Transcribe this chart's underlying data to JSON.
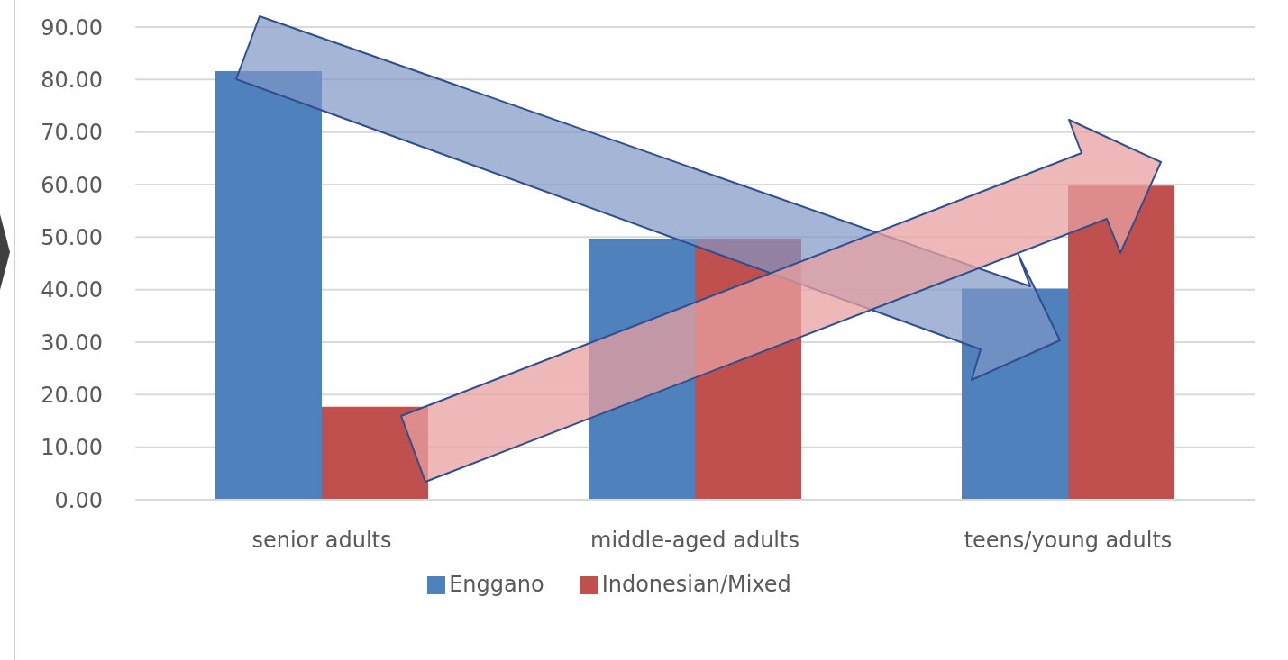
{
  "chart_data": {
    "type": "bar",
    "categories": [
      "senior adults",
      "middle-aged adults",
      "teens/young adults"
    ],
    "series": [
      {
        "name": "Enggano",
        "color": "#4f81bd",
        "values": [
          81.6,
          49.7,
          40.2
        ]
      },
      {
        "name": "Indonesian/Mixed",
        "color": "#c0504d",
        "values": [
          17.7,
          49.7,
          59.8
        ]
      }
    ],
    "ylim": [
      0,
      90
    ],
    "yticks": [
      {
        "value": 0,
        "label": "0.00"
      },
      {
        "value": 10,
        "label": "10.00"
      },
      {
        "value": 20,
        "label": "20.00"
      },
      {
        "value": 30,
        "label": "30.00"
      },
      {
        "value": 40,
        "label": "40.00"
      },
      {
        "value": 50,
        "label": "50.00"
      },
      {
        "value": 60,
        "label": "60.00"
      },
      {
        "value": 70,
        "label": "70.00"
      },
      {
        "value": 80,
        "label": "80.00"
      },
      {
        "value": 90,
        "label": "90.00"
      }
    ],
    "grid": "y",
    "legend": "bottom"
  }
}
